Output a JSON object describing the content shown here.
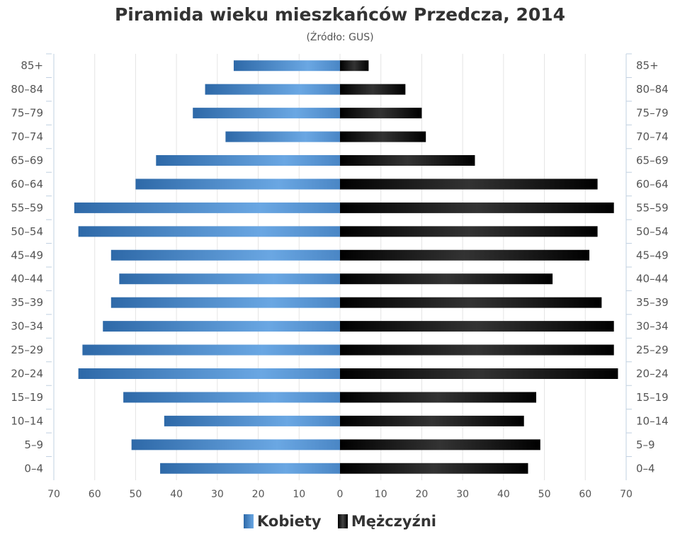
{
  "chart_data": {
    "type": "bar",
    "orientation": "horizontal-population-pyramid",
    "title": "Piramida wieku mieszkańców Przedcza, 2014",
    "subtitle": "(Źródło: GUS)",
    "categories": [
      "85+",
      "80–84",
      "75–79",
      "70–74",
      "65–69",
      "60–64",
      "55–59",
      "50–54",
      "45–49",
      "40–44",
      "35–39",
      "30–34",
      "25–29",
      "20–24",
      "15–19",
      "10–14",
      "5–9",
      "0–4"
    ],
    "series": [
      {
        "name": "Kobiety",
        "color": "#4a86c5",
        "side": "left",
        "values": [
          26,
          33,
          36,
          28,
          45,
          50,
          65,
          64,
          56,
          54,
          56,
          58,
          63,
          64,
          53,
          43,
          51,
          44
        ]
      },
      {
        "name": "Mężczyźni",
        "color": "#111111",
        "side": "right",
        "values": [
          7,
          16,
          20,
          21,
          33,
          63,
          67,
          63,
          61,
          52,
          64,
          67,
          67,
          68,
          48,
          45,
          49,
          46
        ]
      }
    ],
    "xlim": [
      -70,
      70
    ],
    "xticks": [
      "70",
      "60",
      "50",
      "40",
      "30",
      "20",
      "10",
      "0",
      "10",
      "20",
      "30",
      "40",
      "50",
      "60",
      "70"
    ],
    "grid": true,
    "legend": "bottom"
  }
}
